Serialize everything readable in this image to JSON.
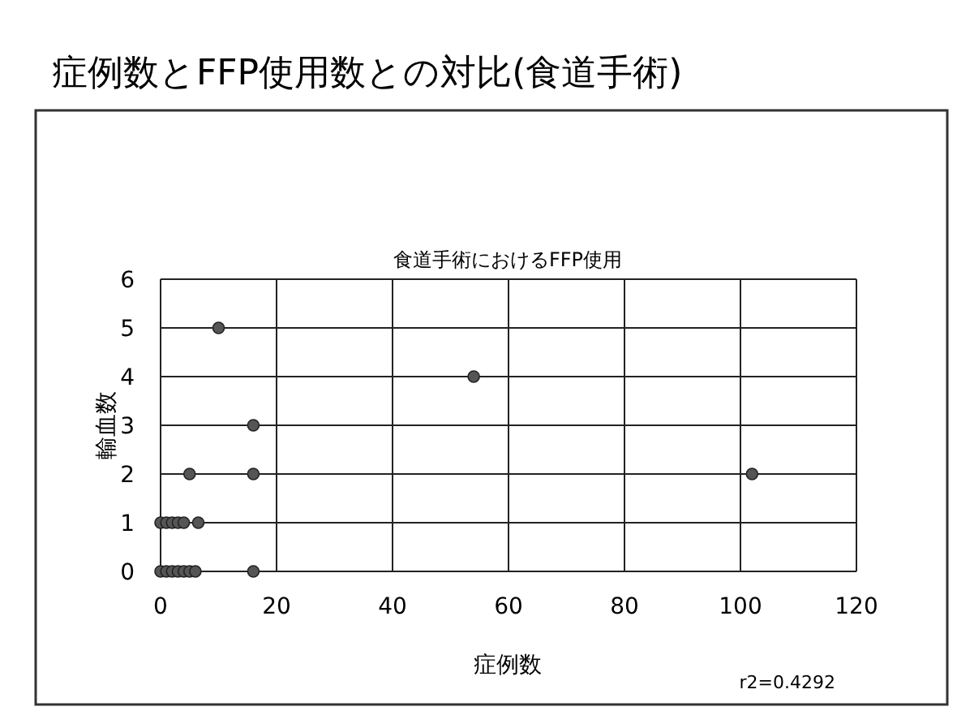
{
  "chart_data": {
    "type": "scatter",
    "title": "症例数とFFP使用数との対比(食道手術)",
    "subtitle": "食道手術におけるFFP使用",
    "xlabel": "症例数",
    "ylabel": "輸血数",
    "annotations": [
      "r2=0.4292"
    ],
    "xlim": [
      0,
      120
    ],
    "xticks": [
      0,
      20,
      40,
      60,
      80,
      100,
      120
    ],
    "ylim": [
      0,
      6
    ],
    "yticks": [
      0,
      1,
      2,
      3,
      4,
      5,
      6
    ],
    "grid": true,
    "marker": "circle",
    "series": [
      {
        "color": "#555555",
        "x": [
          10,
          54,
          16,
          5,
          16,
          102,
          0,
          1,
          2,
          3,
          4,
          6.5,
          0,
          1,
          2,
          3,
          4,
          5,
          6,
          16
        ],
        "values": [
          5,
          4,
          3,
          2,
          2,
          2,
          1,
          1,
          1,
          1,
          1,
          1,
          0,
          0,
          0,
          0,
          0,
          0,
          0,
          0
        ]
      }
    ]
  }
}
